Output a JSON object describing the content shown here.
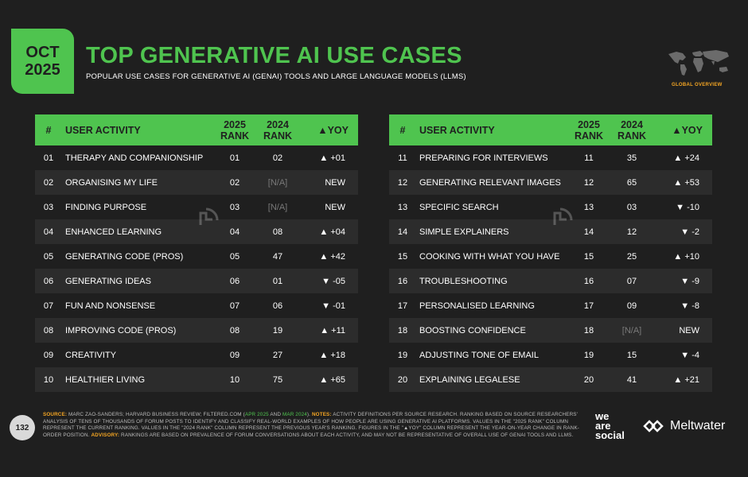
{
  "badge": {
    "month": "OCT",
    "year": "2025"
  },
  "title": "TOP GENERATIVE AI USE CASES",
  "subtitle": "POPULAR USE CASES FOR GENERATIVE AI (GENAI) TOOLS AND LARGE LANGUAGE MODELS (LLMS)",
  "global_label": "GLOBAL OVERVIEW",
  "headers": {
    "num": "#",
    "activity": "USER ACTIVITY",
    "r25a": "2025",
    "r25b": "RANK",
    "r24a": "2024",
    "r24b": "RANK",
    "yoy": "▲YOY"
  },
  "left_rows": [
    {
      "num": "01",
      "activity": "THERAPY AND COMPANIONSHIP",
      "r25": "01",
      "r24": "02",
      "yoy": "▲ +01"
    },
    {
      "num": "02",
      "activity": "ORGANISING MY LIFE",
      "r25": "02",
      "r24": "[N/A]",
      "yoy": "NEW"
    },
    {
      "num": "03",
      "activity": "FINDING PURPOSE",
      "r25": "03",
      "r24": "[N/A]",
      "yoy": "NEW"
    },
    {
      "num": "04",
      "activity": "ENHANCED LEARNING",
      "r25": "04",
      "r24": "08",
      "yoy": "▲ +04"
    },
    {
      "num": "05",
      "activity": "GENERATING CODE (PROS)",
      "r25": "05",
      "r24": "47",
      "yoy": "▲ +42"
    },
    {
      "num": "06",
      "activity": "GENERATING IDEAS",
      "r25": "06",
      "r24": "01",
      "yoy": "▼ -05"
    },
    {
      "num": "07",
      "activity": "FUN AND NONSENSE",
      "r25": "07",
      "r24": "06",
      "yoy": "▼ -01"
    },
    {
      "num": "08",
      "activity": "IMPROVING CODE (PROS)",
      "r25": "08",
      "r24": "19",
      "yoy": "▲ +11"
    },
    {
      "num": "09",
      "activity": "CREATIVITY",
      "r25": "09",
      "r24": "27",
      "yoy": "▲ +18"
    },
    {
      "num": "10",
      "activity": "HEALTHIER LIVING",
      "r25": "10",
      "r24": "75",
      "yoy": "▲ +65"
    }
  ],
  "right_rows": [
    {
      "num": "11",
      "activity": "PREPARING FOR INTERVIEWS",
      "r25": "11",
      "r24": "35",
      "yoy": "▲ +24"
    },
    {
      "num": "12",
      "activity": "GENERATING RELEVANT IMAGES",
      "r25": "12",
      "r24": "65",
      "yoy": "▲ +53"
    },
    {
      "num": "13",
      "activity": "SPECIFIC SEARCH",
      "r25": "13",
      "r24": "03",
      "yoy": "▼ -10"
    },
    {
      "num": "14",
      "activity": "SIMPLE EXPLAINERS",
      "r25": "14",
      "r24": "12",
      "yoy": "▼ -2"
    },
    {
      "num": "15",
      "activity": "COOKING WITH WHAT YOU HAVE",
      "r25": "15",
      "r24": "25",
      "yoy": "▲ +10"
    },
    {
      "num": "16",
      "activity": "TROUBLESHOOTING",
      "r25": "16",
      "r24": "07",
      "yoy": "▼ -9"
    },
    {
      "num": "17",
      "activity": "PERSONALISED LEARNING",
      "r25": "17",
      "r24": "09",
      "yoy": "▼ -8"
    },
    {
      "num": "18",
      "activity": "BOOSTING CONFIDENCE",
      "r25": "18",
      "r24": "[N/A]",
      "yoy": "NEW"
    },
    {
      "num": "19",
      "activity": "ADJUSTING TONE OF EMAIL",
      "r25": "19",
      "r24": "15",
      "yoy": "▼ -4"
    },
    {
      "num": "20",
      "activity": "EXPLAINING LEGALESE",
      "r25": "20",
      "r24": "41",
      "yoy": "▲ +21"
    }
  ],
  "footer": {
    "source_label": "SOURCE:",
    "source_text": " MARC ZAO-SANDERS; HARVARD BUSINESS REVIEW; FILTERED.COM (",
    "date1": "APR 2025",
    "and": " AND ",
    "date2": "MAR 2024",
    "close": "). ",
    "notes_label": "NOTES:",
    "notes_text": " ACTIVITY DEFINITIONS PER SOURCE RESEARCH. RANKING BASED ON SOURCE RESEARCHERS' ANALYSIS OF TENS OF THOUSANDS OF FORUM POSTS TO IDENTIFY AND CLASSIFY REAL-WORLD EXAMPLES OF HOW PEOPLE ARE USING GENERATIVE AI PLATFORMS. VALUES IN THE \"2025 RANK\" COLUMN REPRESENT THE CURRENT RANKING. VALUES IN THE \"2024 RANK\" COLUMN REPRESENT THE PREVIOUS YEAR'S RANKING. FIGURES IN THE \"▲YOY\" COLUMN REPRESENT THE YEAR-ON-YEAR CHANGE IN RANK-ORDER POSITION. ",
    "advisory_label": "ADVISORY:",
    "advisory_text": " RANKINGS ARE BASED ON PREVALENCE OF FORUM CONVERSATIONS ABOUT EACH ACTIVITY, AND MAY NOT BE REPRESENTATIVE OF OVERALL USE OF GENAI TOOLS AND LLMS."
  },
  "page_number": "132",
  "brand_was": [
    "we",
    "are",
    "social"
  ],
  "brand_meltwater": "Meltwater",
  "colors": {
    "accent": "#4fc44f",
    "background": "#1f1f1f",
    "highlight": "#f5a623"
  }
}
